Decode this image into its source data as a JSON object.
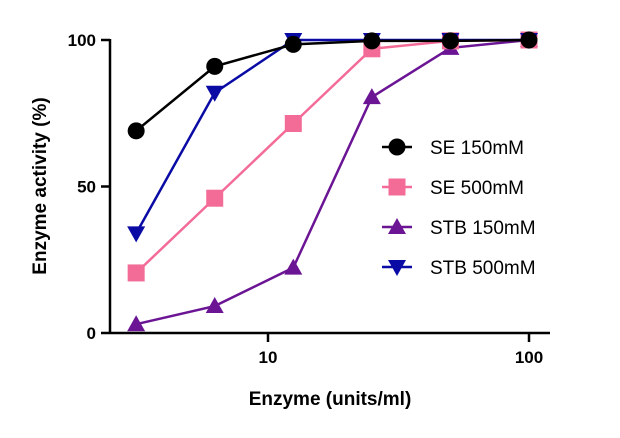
{
  "chart_data": {
    "type": "line",
    "title": "",
    "xlabel": "Enzyme (units/ml)",
    "ylabel": "Enzyme activity (%)",
    "x_scale": "log",
    "xlim": [
      2.6,
      130
    ],
    "ylim": [
      0,
      100
    ],
    "x_ticks": [
      10,
      100
    ],
    "x_tick_labels": [
      "10",
      "100"
    ],
    "y_ticks": [
      0,
      50,
      100
    ],
    "y_tick_labels": [
      "0",
      "50",
      "100"
    ],
    "grid": false,
    "legend_position": "right",
    "x": [
      3.125,
      6.25,
      12.5,
      25,
      50,
      100
    ],
    "series": [
      {
        "name": "SE 150mM",
        "marker": "circle",
        "color": "#000000",
        "values": [
          69,
          91,
          98.5,
          99.7,
          99.7,
          100
        ]
      },
      {
        "name": "SE 500mM",
        "marker": "square",
        "color": "#F36C97",
        "values": [
          20.5,
          46,
          71.5,
          97,
          99.7,
          100
        ]
      },
      {
        "name": "STB 150mM",
        "marker": "triangle-up",
        "color": "#6B1595",
        "values": [
          3,
          9.2,
          22.3,
          80.5,
          97.3,
          100
        ]
      },
      {
        "name": "STB 500mM",
        "marker": "triangle-down",
        "color": "#0A0AA5",
        "values": [
          34,
          82,
          100,
          100,
          100,
          100
        ]
      }
    ]
  }
}
